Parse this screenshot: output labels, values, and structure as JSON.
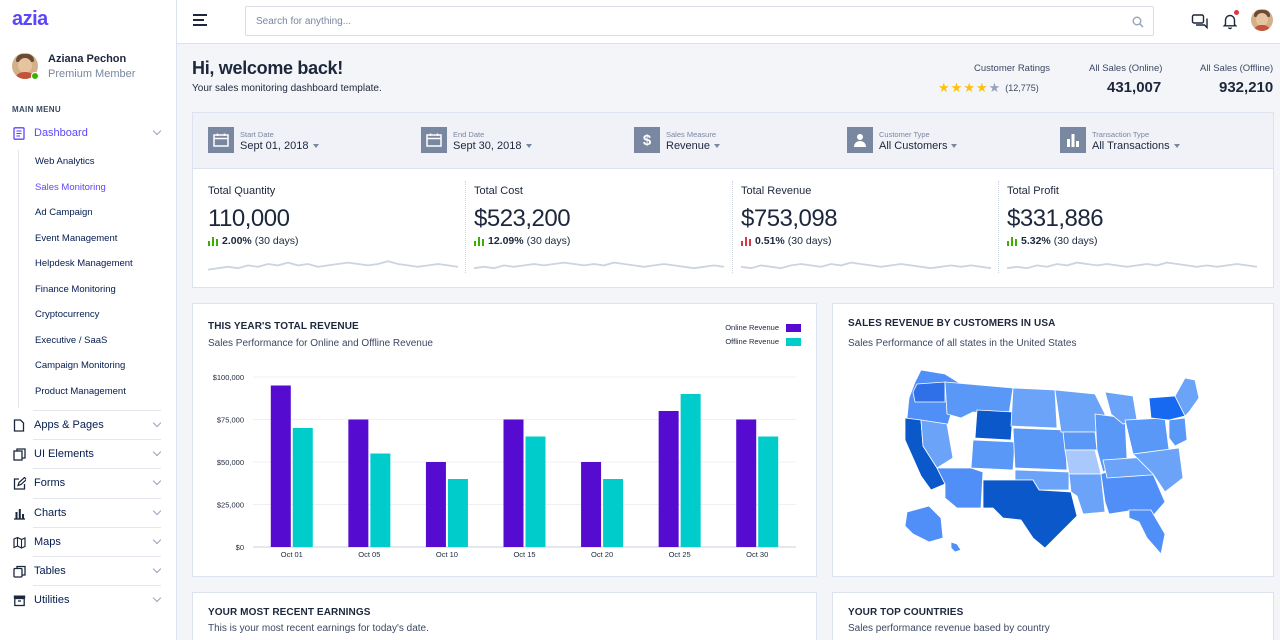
{
  "app": {
    "brand": "azia"
  },
  "profile": {
    "name": "Aziana Pechon",
    "role": "Premium Member"
  },
  "sidebar": {
    "menu_label": "MAIN MENU",
    "dashboard": {
      "label": "Dashboard",
      "icon": "document-icon"
    },
    "sub_items": [
      {
        "label": "Web Analytics",
        "active": false
      },
      {
        "label": "Sales Monitoring",
        "active": true
      },
      {
        "label": "Ad Campaign",
        "active": false
      },
      {
        "label": "Event Management",
        "active": false
      },
      {
        "label": "Helpdesk Management",
        "active": false
      },
      {
        "label": "Finance Monitoring",
        "active": false
      },
      {
        "label": "Cryptocurrency",
        "active": false
      },
      {
        "label": "Executive / SaaS",
        "active": false
      },
      {
        "label": "Campaign Monitoring",
        "active": false
      },
      {
        "label": "Product Management",
        "active": false
      }
    ],
    "items": [
      {
        "label": "Apps & Pages",
        "icon": "file-icon"
      },
      {
        "label": "UI Elements",
        "icon": "layers-icon"
      },
      {
        "label": "Forms",
        "icon": "edit-icon"
      },
      {
        "label": "Charts",
        "icon": "bar-chart-icon"
      },
      {
        "label": "Maps",
        "icon": "map-icon"
      },
      {
        "label": "Tables",
        "icon": "copy-icon"
      },
      {
        "label": "Utilities",
        "icon": "archive-icon"
      }
    ]
  },
  "header": {
    "search_placeholder": "Search for anything..."
  },
  "welcome": {
    "title": "Hi, welcome back!",
    "subtitle": "Your sales monitoring dashboard template."
  },
  "stats": {
    "ratings_label": "Customer Ratings",
    "rating_count": "(12,775)",
    "rating_value": 4,
    "online_label": "All Sales (Online)",
    "online_value": "431,007",
    "offline_label": "All Sales (Offline)",
    "offline_value": "932,210"
  },
  "filters": [
    {
      "label": "Start Date",
      "value": "Sept 01, 2018",
      "icon": "calendar-icon"
    },
    {
      "label": "End Date",
      "value": "Sept 30, 2018",
      "icon": "calendar-icon"
    },
    {
      "label": "Sales Measure",
      "value": "Revenue",
      "icon": "dollar-icon"
    },
    {
      "label": "Customer Type",
      "value": "All Customers",
      "icon": "user-icon"
    },
    {
      "label": "Transaction Type",
      "value": "All Transactions",
      "icon": "bar-chart-icon"
    }
  ],
  "metrics": [
    {
      "title": "Total Quantity",
      "value": "110,000",
      "change": "2.00%",
      "period": "(30 days)",
      "trend": "up"
    },
    {
      "title": "Total Cost",
      "value": "$523,200",
      "change": "12.09%",
      "period": "(30 days)",
      "trend": "up"
    },
    {
      "title": "Total Revenue",
      "value": "$753,098",
      "change": "0.51%",
      "period": "(30 days)",
      "trend": "down"
    },
    {
      "title": "Total Profit",
      "value": "$331,886",
      "change": "5.32%",
      "period": "(30 days)",
      "trend": "up"
    }
  ],
  "revenue_card": {
    "title": "THIS YEAR'S TOTAL REVENUE",
    "subtitle": "Sales Performance for Online and Offline Revenue"
  },
  "usa_card": {
    "title": "SALES REVENUE BY CUSTOMERS IN USA",
    "subtitle": "Sales Performance of all states in the United States"
  },
  "earnings_card": {
    "title": "YOUR MOST RECENT EARNINGS",
    "subtitle": "This is your most recent earnings for today's date."
  },
  "countries_card": {
    "title": "YOUR TOP COUNTRIES",
    "subtitle": "Sales performance revenue based by country"
  },
  "colors": {
    "accent": "#5b47fb",
    "online": "#560bd0",
    "offline": "#00cccc",
    "up": "#3bb001",
    "down": "#dc3545",
    "star": "#ffc107"
  },
  "chart_data": {
    "type": "bar",
    "title": "THIS YEAR'S TOTAL REVENUE",
    "categories": [
      "Oct 01",
      "Oct 05",
      "Oct 10",
      "Oct 15",
      "Oct 20",
      "Oct 25",
      "Oct 30"
    ],
    "series": [
      {
        "name": "Online Revenue",
        "values": [
          95000,
          75000,
          50000,
          75000,
          50000,
          80000,
          75000
        ]
      },
      {
        "name": "Offline Revenue",
        "values": [
          70000,
          55000,
          40000,
          65000,
          40000,
          90000,
          65000
        ]
      }
    ],
    "y_ticks": [
      "$100,000",
      "$75,000",
      "$50,000",
      "$25,000",
      "$0"
    ],
    "ylim": [
      0,
      100000
    ],
    "xlabel": "",
    "ylabel": "",
    "legend_position": "top-right",
    "grid": true
  }
}
